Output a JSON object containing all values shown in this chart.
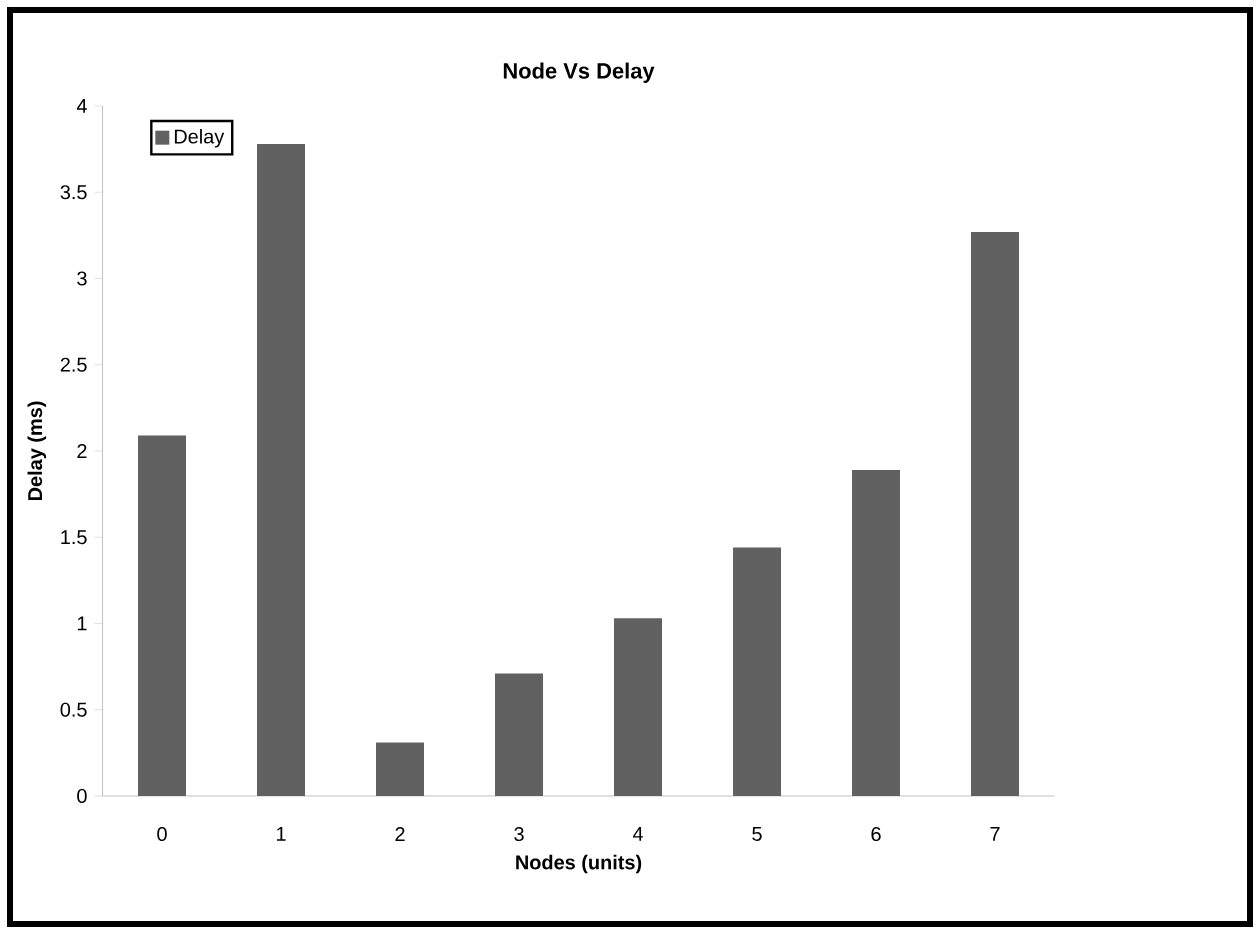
{
  "chart_data": {
    "type": "bar",
    "title": "Node Vs Delay",
    "xlabel": "Nodes (units)",
    "ylabel": "Delay (ms)",
    "categories": [
      "0",
      "1",
      "2",
      "3",
      "4",
      "5",
      "6",
      "7"
    ],
    "series": [
      {
        "name": "Delay",
        "color": "#616161",
        "values": [
          2.09,
          3.78,
          0.31,
          0.71,
          1.03,
          1.44,
          1.89,
          3.27
        ]
      }
    ],
    "ylim": [
      0,
      4
    ],
    "yticks": [
      0,
      0.5,
      1,
      1.5,
      2,
      2.5,
      3,
      3.5,
      4
    ],
    "grid": false,
    "legend": "top left"
  }
}
